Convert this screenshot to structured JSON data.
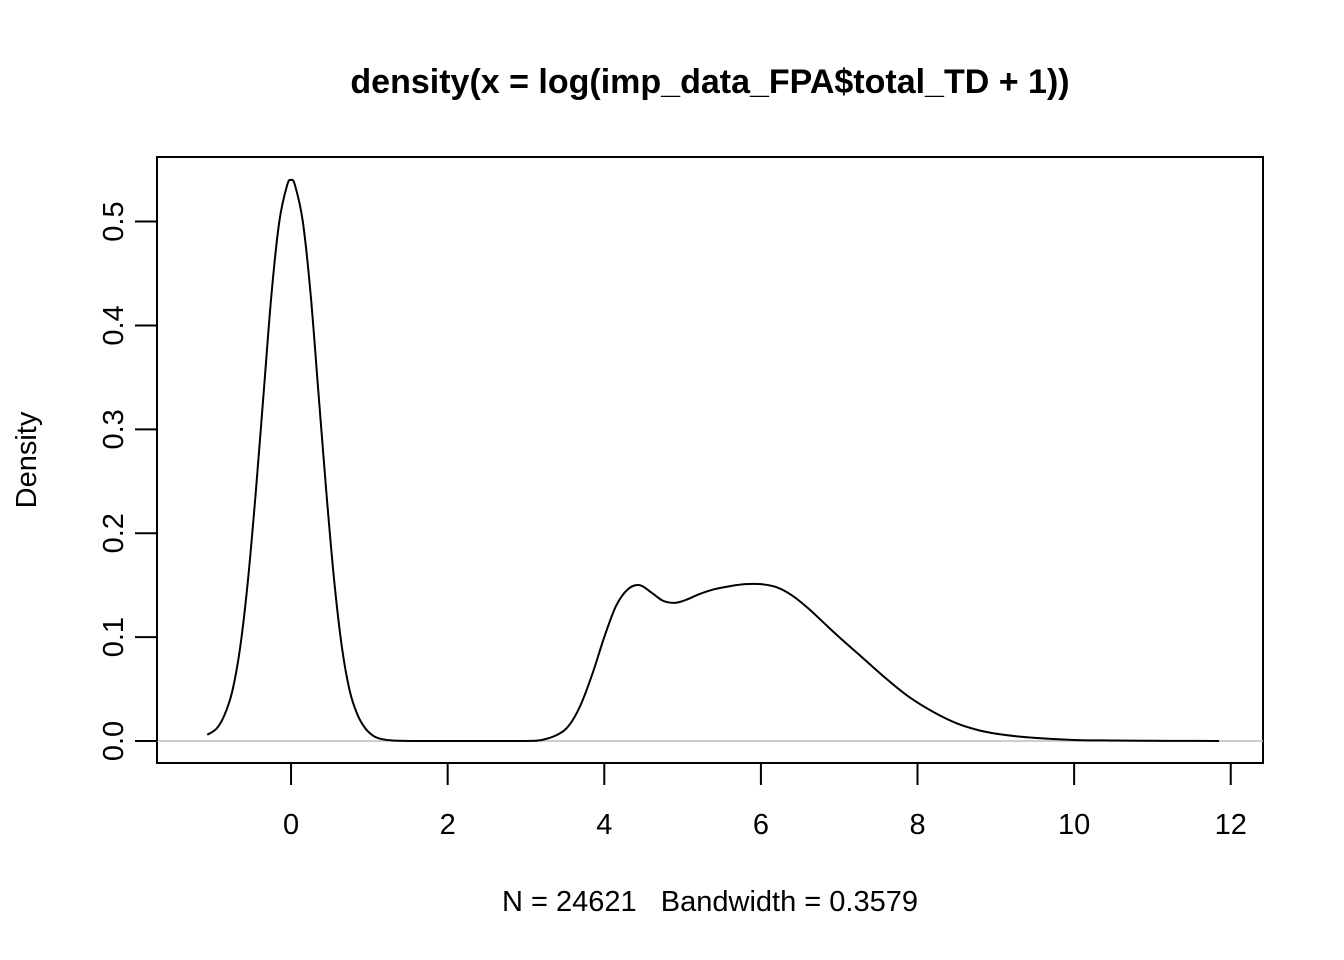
{
  "chart_data": {
    "type": "line",
    "title": "density(x = log(imp_data_FPA$total_TD + 1))",
    "xlabel": "N = 24621   Bandwidth = 0.3579",
    "ylabel": "Density",
    "xlim": [
      -1.15,
      11.85
    ],
    "ylim": [
      0.0,
      0.54
    ],
    "x_ticks": [
      0,
      2,
      4,
      6,
      8,
      10,
      12
    ],
    "y_ticks": [
      0.0,
      0.1,
      0.2,
      0.3,
      0.4,
      0.5
    ],
    "x_tick_labels": [
      "0",
      "2",
      "4",
      "6",
      "8",
      "10",
      "12"
    ],
    "y_tick_labels": [
      "0.0",
      "0.1",
      "0.2",
      "0.3",
      "0.4",
      "0.5"
    ],
    "zero_reference_line": true,
    "grid": false,
    "series": [
      {
        "x": [
          -1.07,
          -0.95,
          -0.85,
          -0.75,
          -0.65,
          -0.55,
          -0.45,
          -0.35,
          -0.25,
          -0.15,
          -0.05,
          0.0,
          0.05,
          0.15,
          0.25,
          0.35,
          0.45,
          0.55,
          0.65,
          0.75,
          0.85,
          0.95,
          1.05,
          1.15,
          1.3,
          1.6,
          2.0,
          2.5,
          3.0,
          3.2,
          3.4,
          3.55,
          3.7,
          3.85,
          4.0,
          4.15,
          4.3,
          4.45,
          4.6,
          4.75,
          4.9,
          5.05,
          5.2,
          5.4,
          5.6,
          5.8,
          6.0,
          6.2,
          6.4,
          6.6,
          6.8,
          7.0,
          7.3,
          7.6,
          7.9,
          8.2,
          8.5,
          8.8,
          9.1,
          9.5,
          10.0,
          10.5,
          11.0,
          11.5,
          11.85
        ],
        "y": [
          0.006,
          0.012,
          0.025,
          0.048,
          0.09,
          0.155,
          0.24,
          0.335,
          0.43,
          0.5,
          0.535,
          0.54,
          0.535,
          0.5,
          0.43,
          0.335,
          0.24,
          0.155,
          0.09,
          0.048,
          0.025,
          0.012,
          0.005,
          0.002,
          0.0005,
          0.0,
          0.0,
          0.0,
          0.0,
          0.001,
          0.006,
          0.015,
          0.035,
          0.065,
          0.1,
          0.13,
          0.146,
          0.15,
          0.143,
          0.135,
          0.133,
          0.136,
          0.141,
          0.146,
          0.149,
          0.151,
          0.151,
          0.148,
          0.14,
          0.128,
          0.114,
          0.1,
          0.08,
          0.06,
          0.042,
          0.028,
          0.017,
          0.01,
          0.006,
          0.003,
          0.001,
          0.0005,
          0.0002,
          0.0001,
          0.0
        ]
      }
    ]
  }
}
